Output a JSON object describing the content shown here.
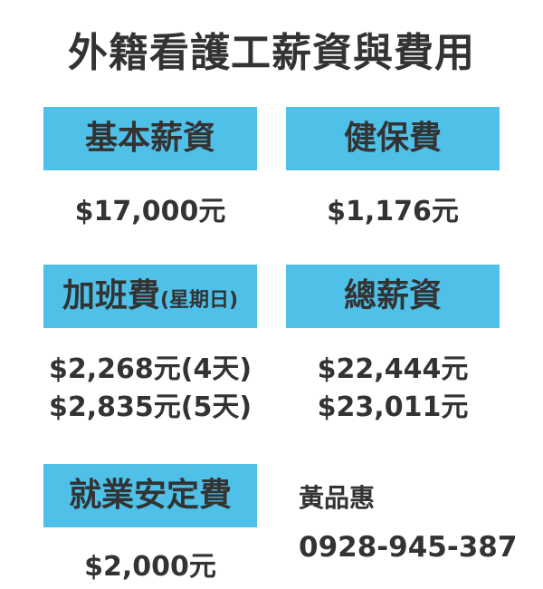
{
  "title": "外籍看護工薪資與費用",
  "items": {
    "base_salary": {
      "label": "基本薪資",
      "value": "$17,000元"
    },
    "health_insurance": {
      "label": "健保費",
      "value": "$1,176元"
    },
    "overtime": {
      "label": "加班費",
      "label_note": "(星期日)",
      "values": [
        "$2,268元(4天)",
        "$2,835元(5天)"
      ]
    },
    "total_salary": {
      "label": "總薪資",
      "values": [
        "$22,444元",
        "$23,011元"
      ]
    },
    "employment_stability": {
      "label": "就業安定費",
      "value": "$2,000元"
    }
  },
  "contact": {
    "name": "黃品惠",
    "phone": "0928-945-387"
  },
  "colors": {
    "label_background": "#4fc1e9",
    "text": "#333333"
  }
}
